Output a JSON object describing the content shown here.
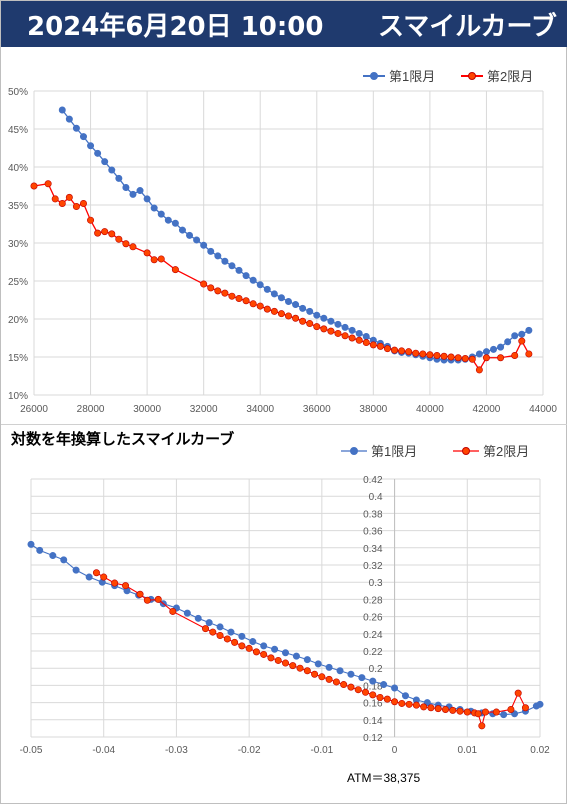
{
  "header": {
    "datetime": "2024年6月20日 10:00",
    "title": "スマイルカーブ"
  },
  "colors": {
    "series1": "#4472c4",
    "series2": "#ff0000",
    "series2_marker": "#ff4500",
    "header_bg": "#1f3a6e",
    "grid": "#d9d9d9"
  },
  "chart_data": [
    {
      "type": "scatter",
      "xlim": [
        26000,
        44000
      ],
      "ylim": [
        0.1,
        0.5
      ],
      "x_ticks": [
        "26000",
        "28000",
        "30000",
        "32000",
        "34000",
        "36000",
        "38000",
        "40000",
        "42000",
        "44000"
      ],
      "y_ticks": [
        "10%",
        "15%",
        "20%",
        "25%",
        "30%",
        "35%",
        "40%",
        "45%",
        "50%"
      ],
      "legend_position": "top-right",
      "grid": true,
      "series": [
        {
          "name": "第1限月",
          "points": [
            [
              27000,
              0.475
            ],
            [
              27250,
              0.463
            ],
            [
              27500,
              0.451
            ],
            [
              27750,
              0.44
            ],
            [
              28000,
              0.428
            ],
            [
              28250,
              0.418
            ],
            [
              28500,
              0.407
            ],
            [
              28750,
              0.396
            ],
            [
              29000,
              0.385
            ],
            [
              29250,
              0.373
            ],
            [
              29500,
              0.364
            ],
            [
              29750,
              0.369
            ],
            [
              30000,
              0.358
            ],
            [
              30250,
              0.346
            ],
            [
              30500,
              0.338
            ],
            [
              30750,
              0.33
            ],
            [
              31000,
              0.326
            ],
            [
              31250,
              0.317
            ],
            [
              31500,
              0.31
            ],
            [
              31750,
              0.304
            ],
            [
              32000,
              0.297
            ],
            [
              32250,
              0.289
            ],
            [
              32500,
              0.283
            ],
            [
              32750,
              0.276
            ],
            [
              33000,
              0.27
            ],
            [
              33250,
              0.264
            ],
            [
              33500,
              0.257
            ],
            [
              33750,
              0.251
            ],
            [
              34000,
              0.245
            ],
            [
              34250,
              0.239
            ],
            [
              34500,
              0.233
            ],
            [
              34750,
              0.228
            ],
            [
              35000,
              0.223
            ],
            [
              35250,
              0.219
            ],
            [
              35500,
              0.214
            ],
            [
              35750,
              0.21
            ],
            [
              36000,
              0.205
            ],
            [
              36250,
              0.201
            ],
            [
              36500,
              0.197
            ],
            [
              36750,
              0.193
            ],
            [
              37000,
              0.189
            ],
            [
              37250,
              0.185
            ],
            [
              37500,
              0.181
            ],
            [
              37750,
              0.177
            ],
            [
              38000,
              0.172
            ],
            [
              38250,
              0.168
            ],
            [
              38500,
              0.164
            ],
            [
              38750,
              0.158
            ],
            [
              39000,
              0.156
            ],
            [
              39250,
              0.155
            ],
            [
              39500,
              0.153
            ],
            [
              39750,
              0.151
            ],
            [
              40000,
              0.149
            ],
            [
              40250,
              0.147
            ],
            [
              40500,
              0.146
            ],
            [
              40750,
              0.146
            ],
            [
              41000,
              0.146
            ],
            [
              41250,
              0.147
            ],
            [
              41500,
              0.15
            ],
            [
              41750,
              0.154
            ],
            [
              42000,
              0.157
            ],
            [
              42250,
              0.16
            ],
            [
              42500,
              0.163
            ],
            [
              42750,
              0.17
            ],
            [
              43000,
              0.178
            ],
            [
              43250,
              0.18
            ],
            [
              43500,
              0.185
            ]
          ]
        },
        {
          "name": "第2限月",
          "points": [
            [
              26000,
              0.375
            ],
            [
              26500,
              0.378
            ],
            [
              26750,
              0.358
            ],
            [
              27000,
              0.352
            ],
            [
              27250,
              0.36
            ],
            [
              27500,
              0.348
            ],
            [
              27750,
              0.352
            ],
            [
              28000,
              0.33
            ],
            [
              28250,
              0.313
            ],
            [
              28500,
              0.315
            ],
            [
              28750,
              0.312
            ],
            [
              29000,
              0.305
            ],
            [
              29250,
              0.299
            ],
            [
              29500,
              0.295
            ],
            [
              30000,
              0.287
            ],
            [
              30250,
              0.278
            ],
            [
              30500,
              0.279
            ],
            [
              31000,
              0.265
            ],
            [
              32000,
              0.246
            ],
            [
              32250,
              0.241
            ],
            [
              32500,
              0.237
            ],
            [
              32750,
              0.234
            ],
            [
              33000,
              0.23
            ],
            [
              33250,
              0.227
            ],
            [
              33500,
              0.224
            ],
            [
              33750,
              0.22
            ],
            [
              34000,
              0.217
            ],
            [
              34250,
              0.213
            ],
            [
              34500,
              0.21
            ],
            [
              34750,
              0.207
            ],
            [
              35000,
              0.204
            ],
            [
              35250,
              0.201
            ],
            [
              35500,
              0.197
            ],
            [
              35750,
              0.194
            ],
            [
              36000,
              0.19
            ],
            [
              36250,
              0.187
            ],
            [
              36500,
              0.184
            ],
            [
              36750,
              0.181
            ],
            [
              37000,
              0.178
            ],
            [
              37250,
              0.175
            ],
            [
              37500,
              0.172
            ],
            [
              37750,
              0.169
            ],
            [
              38000,
              0.166
            ],
            [
              38250,
              0.164
            ],
            [
              38500,
              0.161
            ],
            [
              38750,
              0.159
            ],
            [
              39000,
              0.158
            ],
            [
              39250,
              0.157
            ],
            [
              39500,
              0.155
            ],
            [
              39750,
              0.154
            ],
            [
              40000,
              0.153
            ],
            [
              40250,
              0.152
            ],
            [
              40500,
              0.151
            ],
            [
              40750,
              0.15
            ],
            [
              41000,
              0.149
            ],
            [
              41250,
              0.148
            ],
            [
              41500,
              0.147
            ],
            [
              41750,
              0.133
            ],
            [
              42000,
              0.149
            ],
            [
              42500,
              0.149
            ],
            [
              43000,
              0.152
            ],
            [
              43250,
              0.171
            ],
            [
              43500,
              0.154
            ]
          ]
        }
      ]
    },
    {
      "type": "scatter",
      "title": "対数を年換算したスマイルカーブ",
      "xlim": [
        -0.05,
        0.02
      ],
      "ylim": [
        0.12,
        0.42
      ],
      "x_ticks": [
        "-0.05",
        "-0.04",
        "-0.03",
        "-0.02",
        "-0.01",
        "0",
        "0.01",
        "0.02"
      ],
      "y_ticks": [
        "0.12",
        "0.14",
        "0.16",
        "0.18",
        "0.2",
        "0.22",
        "0.24",
        "0.26",
        "0.28",
        "0.3",
        "0.32",
        "0.34",
        "0.36",
        "0.38",
        "0.4",
        "0.42"
      ],
      "legend_position": "top",
      "grid": true,
      "annotation": "ATM＝38,375",
      "series": [
        {
          "name": "第1限月",
          "points": [
            [
              -0.05,
              0.344
            ],
            [
              -0.0488,
              0.337
            ],
            [
              -0.047,
              0.331
            ],
            [
              -0.0455,
              0.326
            ],
            [
              -0.0438,
              0.314
            ],
            [
              -0.042,
              0.306
            ],
            [
              -0.0402,
              0.3
            ],
            [
              -0.0385,
              0.296
            ],
            [
              -0.0368,
              0.29
            ],
            [
              -0.0352,
              0.285
            ],
            [
              -0.0335,
              0.28
            ],
            [
              -0.0318,
              0.275
            ],
            [
              -0.03,
              0.27
            ],
            [
              -0.0285,
              0.264
            ],
            [
              -0.027,
              0.258
            ],
            [
              -0.0255,
              0.253
            ],
            [
              -0.024,
              0.248
            ],
            [
              -0.0225,
              0.242
            ],
            [
              -0.021,
              0.237
            ],
            [
              -0.0195,
              0.231
            ],
            [
              -0.018,
              0.226
            ],
            [
              -0.0165,
              0.222
            ],
            [
              -0.015,
              0.218
            ],
            [
              -0.0135,
              0.214
            ],
            [
              -0.012,
              0.21
            ],
            [
              -0.0105,
              0.205
            ],
            [
              -0.009,
              0.201
            ],
            [
              -0.0075,
              0.197
            ],
            [
              -0.006,
              0.193
            ],
            [
              -0.0045,
              0.189
            ],
            [
              -0.003,
              0.185
            ],
            [
              -0.0015,
              0.181
            ],
            [
              0.0,
              0.177
            ],
            [
              0.0015,
              0.168
            ],
            [
              0.003,
              0.163
            ],
            [
              0.0045,
              0.16
            ],
            [
              0.006,
              0.157
            ],
            [
              0.0075,
              0.155
            ],
            [
              0.009,
              0.152
            ],
            [
              0.0105,
              0.15
            ],
            [
              0.012,
              0.148
            ],
            [
              0.0135,
              0.147
            ],
            [
              0.015,
              0.146
            ],
            [
              0.0165,
              0.147
            ],
            [
              0.018,
              0.15
            ],
            [
              0.0195,
              0.156
            ],
            [
              0.02,
              0.158
            ]
          ]
        },
        {
          "name": "第2限月",
          "points": [
            [
              -0.041,
              0.311
            ],
            [
              -0.04,
              0.306
            ],
            [
              -0.0385,
              0.299
            ],
            [
              -0.037,
              0.296
            ],
            [
              -0.035,
              0.286
            ],
            [
              -0.034,
              0.279
            ],
            [
              -0.0325,
              0.28
            ],
            [
              -0.0305,
              0.266
            ],
            [
              -0.026,
              0.246
            ],
            [
              -0.025,
              0.242
            ],
            [
              -0.024,
              0.238
            ],
            [
              -0.023,
              0.234
            ],
            [
              -0.022,
              0.23
            ],
            [
              -0.021,
              0.226
            ],
            [
              -0.02,
              0.223
            ],
            [
              -0.019,
              0.219
            ],
            [
              -0.018,
              0.216
            ],
            [
              -0.017,
              0.212
            ],
            [
              -0.016,
              0.209
            ],
            [
              -0.015,
              0.206
            ],
            [
              -0.014,
              0.203
            ],
            [
              -0.013,
              0.2
            ],
            [
              -0.012,
              0.197
            ],
            [
              -0.011,
              0.193
            ],
            [
              -0.01,
              0.19
            ],
            [
              -0.009,
              0.187
            ],
            [
              -0.008,
              0.184
            ],
            [
              -0.007,
              0.181
            ],
            [
              -0.006,
              0.178
            ],
            [
              -0.005,
              0.175
            ],
            [
              -0.004,
              0.172
            ],
            [
              -0.003,
              0.169
            ],
            [
              -0.002,
              0.166
            ],
            [
              -0.001,
              0.164
            ],
            [
              0.0,
              0.161
            ],
            [
              0.001,
              0.159
            ],
            [
              0.002,
              0.158
            ],
            [
              0.003,
              0.157
            ],
            [
              0.004,
              0.155
            ],
            [
              0.005,
              0.154
            ],
            [
              0.006,
              0.153
            ],
            [
              0.007,
              0.152
            ],
            [
              0.008,
              0.151
            ],
            [
              0.009,
              0.15
            ],
            [
              0.01,
              0.149
            ],
            [
              0.011,
              0.148
            ],
            [
              0.0115,
              0.147
            ],
            [
              0.012,
              0.133
            ],
            [
              0.0125,
              0.149
            ],
            [
              0.014,
              0.149
            ],
            [
              0.016,
              0.152
            ],
            [
              0.017,
              0.171
            ],
            [
              0.018,
              0.154
            ]
          ]
        }
      ]
    }
  ]
}
